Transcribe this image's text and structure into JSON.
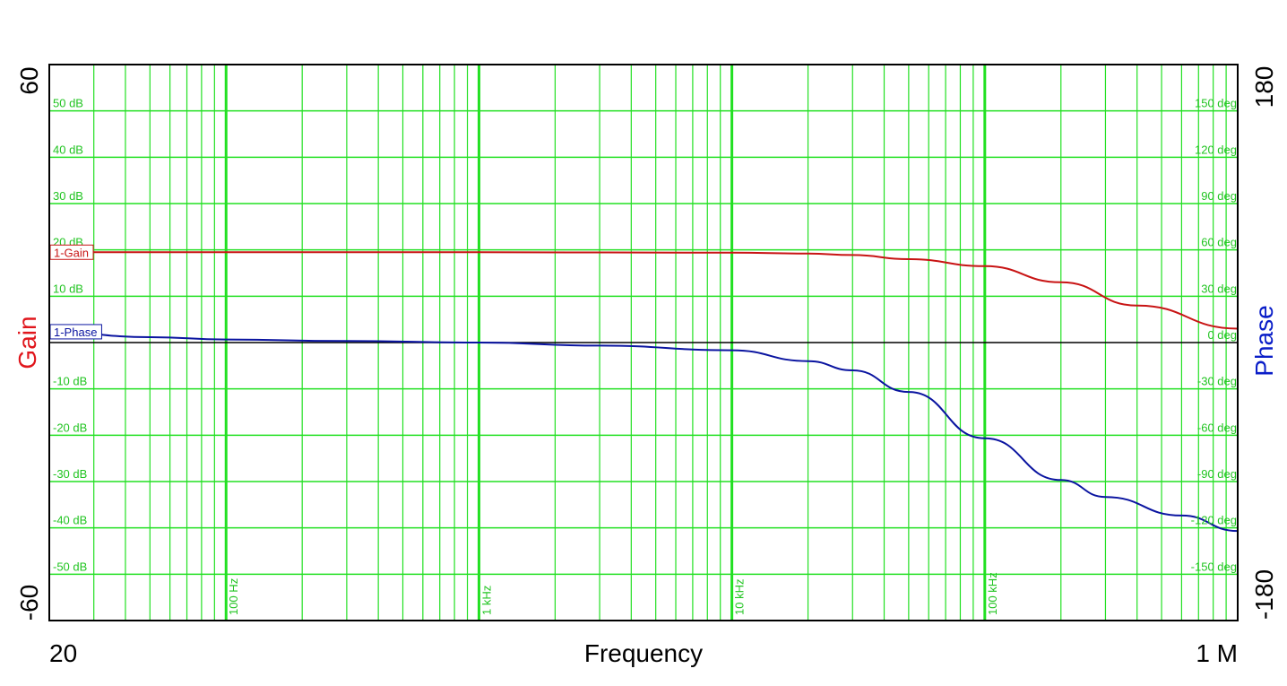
{
  "chart_data": {
    "type": "line",
    "x_scale": "log",
    "xlim": [
      20,
      1000000
    ],
    "x_axis": {
      "label": "Frequency",
      "min_label": "20",
      "max_label": "1 M",
      "decade_ticks": [
        100,
        1000,
        10000,
        100000
      ],
      "decade_labels": [
        "100 Hz",
        "1 kHz",
        "10 kHz",
        "100 kHz"
      ]
    },
    "gain_axis": {
      "label": "Gain",
      "min_label": "-60",
      "max_label": "60",
      "ylim": [
        -60,
        60
      ],
      "ticks": [
        50,
        40,
        30,
        20,
        10,
        -10,
        -20,
        -30,
        -40,
        -50
      ],
      "tick_labels": [
        "50 dB",
        "40 dB",
        "30 dB",
        "20 dB",
        "10 dB",
        "-10 dB",
        "-20 dB",
        "-30 dB",
        "-40 dB",
        "-50 dB"
      ],
      "color": "#e0161c"
    },
    "phase_axis": {
      "label": "Phase",
      "min_label": "-180",
      "max_label": "180",
      "ylim": [
        -180,
        180
      ],
      "ticks": [
        150,
        120,
        90,
        60,
        30,
        0,
        -30,
        -60,
        -90,
        -120,
        -150
      ],
      "tick_labels": [
        "150 deg",
        "120 deg",
        "90 deg",
        "60 deg",
        "30 deg",
        "0 deg",
        "-30 deg",
        "-60 deg",
        "-90 deg",
        "-120 deg",
        "-150 deg"
      ],
      "color": "#0a1ec8"
    },
    "grid": true,
    "grid_color": "#22e022",
    "series": [
      {
        "name": "1-Gain",
        "axis": "gain",
        "color": "#c81414",
        "x": [
          20,
          100,
          1000,
          10000,
          20000,
          30000,
          50000,
          100000,
          200000,
          400000,
          1000000
        ],
        "y": [
          19.5,
          19.5,
          19.5,
          19.4,
          19.2,
          18.9,
          18.0,
          16.5,
          13.0,
          8.0,
          3.0
        ]
      },
      {
        "name": "1-Phase",
        "axis": "phase",
        "color": "#0a14a0",
        "x": [
          20,
          50,
          100,
          300,
          1000,
          3000,
          10000,
          20000,
          30000,
          50000,
          100000,
          200000,
          300000,
          600000,
          1000000
        ],
        "y": [
          7,
          3.5,
          2,
          1,
          0,
          -2,
          -5,
          -12,
          -18,
          -32,
          -62,
          -89,
          -100,
          -112,
          -122
        ]
      }
    ]
  }
}
